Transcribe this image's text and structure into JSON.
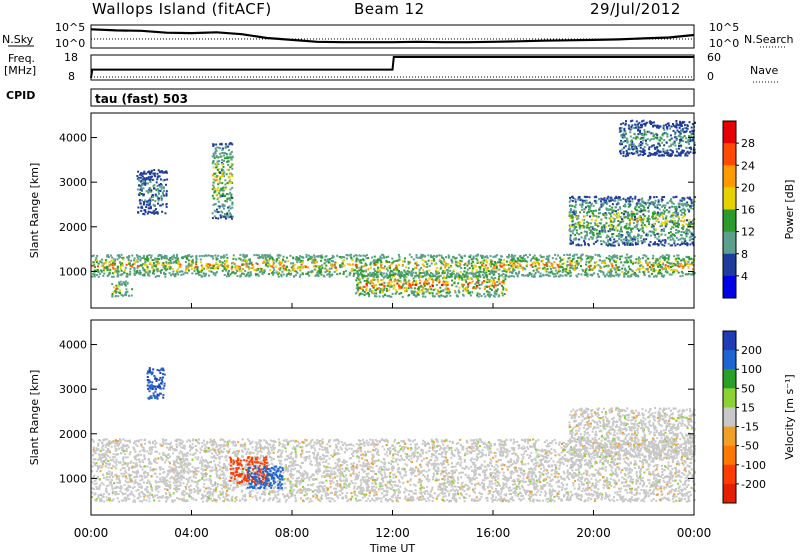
{
  "header": {
    "station": "Wallops Island (fitACF)",
    "beam": "Beam 12",
    "date": "29/Jul/2012"
  },
  "noise": {
    "sky_label": "N.Sky",
    "search_label": "N.Search",
    "ticks_left": [
      "10^5",
      "10^0"
    ],
    "ticks_right": [
      "10^5",
      "10^0"
    ]
  },
  "freq": {
    "label": "Freq.",
    "unit": "[MHz]",
    "ticks_left": [
      "18",
      "8"
    ],
    "nave_label": "Nave",
    "ticks_right": [
      "60",
      "0"
    ]
  },
  "cpid": {
    "label": "CPID",
    "value": "tau (fast) 503"
  },
  "power_panel": {
    "ylabel": "Slant Range [km]",
    "yticks": [
      "4000",
      "3000",
      "2000",
      "1000"
    ],
    "cbar_label": "Power [dB]",
    "cbar_ticks": [
      "28",
      "24",
      "20",
      "16",
      "12",
      "8",
      "4"
    ],
    "cbar_colors": [
      "#e60000",
      "#ff4a00",
      "#ff9b00",
      "#e6d200",
      "#2c9b2c",
      "#5aa08c",
      "#1e3c9b",
      "#0000e6"
    ]
  },
  "velocity_panel": {
    "ylabel": "Slant Range [km]",
    "yticks": [
      "4000",
      "3000",
      "2000",
      "1000"
    ],
    "cbar_label": "Velocity [m s⁻¹]",
    "cbar_ticks": [
      "200",
      "100",
      "50",
      "15",
      "-15",
      "-50",
      "-100",
      "-200"
    ],
    "cbar_colors": [
      "#1e3cb4",
      "#1e64d2",
      "#28a028",
      "#8cd232",
      "#c8c8c8",
      "#f0a028",
      "#ff7800",
      "#ff3c00",
      "#e61e00"
    ]
  },
  "xaxis": {
    "ticks": [
      "00:00",
      "04:00",
      "08:00",
      "12:00",
      "16:00",
      "20:00",
      "00:00"
    ],
    "label": "Time UT"
  },
  "chart_data": [
    {
      "type": "line",
      "series": [
        {
          "name": "N.Sky",
          "x": [
            0,
            1,
            2,
            3,
            4,
            5,
            6,
            7,
            8,
            9,
            10,
            11,
            12,
            13,
            14,
            15,
            16,
            17,
            18,
            19,
            20,
            21,
            22,
            23,
            24
          ],
          "values": [
            0.88,
            0.82,
            0.8,
            0.7,
            0.68,
            0.72,
            0.62,
            0.42,
            0.32,
            0.22,
            0.2,
            0.2,
            0.2,
            0.22,
            0.2,
            0.2,
            0.22,
            0.25,
            0.28,
            0.3,
            0.32,
            0.35,
            0.4,
            0.45,
            0.58
          ]
        }
      ],
      "x_range_hours": [
        0,
        24
      ]
    },
    {
      "type": "line",
      "series": [
        {
          "name": "Freq.",
          "x": [
            0,
            0.05,
            12,
            12.05,
            24
          ],
          "values": [
            8,
            12,
            12,
            18,
            18
          ]
        }
      ],
      "ylim": [
        8,
        18
      ],
      "x_range_hours": [
        0,
        24
      ]
    },
    {
      "type": "heatmap",
      "title": "Power [dB]",
      "x_range_hours": [
        0,
        24
      ],
      "y_range_km": [
        180,
        4550
      ],
      "color_bins_db": [
        4,
        8,
        12,
        16,
        20,
        24,
        28
      ],
      "scatter_regions": [
        {
          "t0": 0.0,
          "t1": 24.0,
          "r0": 900,
          "r1": 1400,
          "max_db": 26
        },
        {
          "t0": 0.8,
          "t1": 1.6,
          "r0": 450,
          "r1": 800,
          "max_db": 26
        },
        {
          "t0": 1.8,
          "t1": 3.0,
          "r0": 2300,
          "r1": 3300,
          "max_db": 12
        },
        {
          "t0": 4.8,
          "t1": 5.6,
          "r0": 2200,
          "r1": 3900,
          "max_db": 22
        },
        {
          "t0": 10.5,
          "t1": 16.5,
          "r0": 450,
          "r1": 1000,
          "max_db": 30
        },
        {
          "t0": 19.0,
          "t1": 24.0,
          "r0": 1600,
          "r1": 2700,
          "max_db": 20
        },
        {
          "t0": 21.0,
          "t1": 24.0,
          "r0": 3600,
          "r1": 4400,
          "max_db": 14
        }
      ]
    },
    {
      "type": "heatmap",
      "title": "Velocity [m s⁻¹]",
      "x_range_hours": [
        0,
        24
      ],
      "y_range_km": [
        180,
        4550
      ],
      "color_bins_ms": [
        -200,
        -100,
        -50,
        -15,
        15,
        50,
        100,
        200
      ],
      "scatter_regions": [
        {
          "t0": 0.0,
          "t1": 24.0,
          "r0": 500,
          "r1": 1900,
          "dominant_ms": 0
        },
        {
          "t0": 2.2,
          "t1": 2.9,
          "r0": 2800,
          "r1": 3500,
          "dominant_ms": 200
        },
        {
          "t0": 5.5,
          "t1": 7.0,
          "r0": 900,
          "r1": 1500,
          "dominant_ms": -150
        },
        {
          "t0": 6.2,
          "t1": 7.6,
          "r0": 800,
          "r1": 1300,
          "dominant_ms": 150
        },
        {
          "t0": 19.0,
          "t1": 24.0,
          "r0": 1500,
          "r1": 2600,
          "dominant_ms": 0
        }
      ]
    }
  ]
}
